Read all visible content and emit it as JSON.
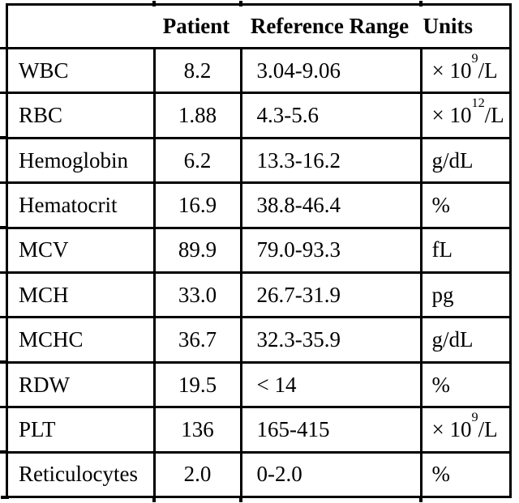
{
  "header": {
    "patient": "Patient",
    "reference_range": "Reference Range",
    "units": "Units"
  },
  "rows": [
    {
      "name": "WBC",
      "patient": "8.2",
      "range": "3.04-9.06",
      "unit": {
        "base": "× 10",
        "sup": "9",
        "tail": "/L"
      }
    },
    {
      "name": "RBC",
      "patient": "1.88",
      "range": "4.3-5.6",
      "unit": {
        "base": "× 10",
        "sup": "12",
        "tail": "/L"
      }
    },
    {
      "name": "Hemoglobin",
      "patient": "6.2",
      "range": "13.3-16.2",
      "unit": {
        "base": "g/dL",
        "sup": "",
        "tail": ""
      }
    },
    {
      "name": "Hematocrit",
      "patient": "16.9",
      "range": "38.8-46.4",
      "unit": {
        "base": "%",
        "sup": "",
        "tail": ""
      }
    },
    {
      "name": "MCV",
      "patient": "89.9",
      "range": "79.0-93.3",
      "unit": {
        "base": "fL",
        "sup": "",
        "tail": ""
      }
    },
    {
      "name": "MCH",
      "patient": "33.0",
      "range": "26.7-31.9",
      "unit": {
        "base": "pg",
        "sup": "",
        "tail": ""
      }
    },
    {
      "name": "MCHC",
      "patient": "36.7",
      "range": "32.3-35.9",
      "unit": {
        "base": "g/dL",
        "sup": "",
        "tail": ""
      }
    },
    {
      "name": "RDW",
      "patient": "19.5",
      "range": "< 14",
      "unit": {
        "base": "%",
        "sup": "",
        "tail": ""
      }
    },
    {
      "name": "PLT",
      "patient": "136",
      "range": "165-415",
      "unit": {
        "base": "× 10",
        "sup": "9",
        "tail": "/L"
      }
    },
    {
      "name": "Reticulocytes",
      "patient": "2.0",
      "range": "0-2.0",
      "unit": {
        "base": "%",
        "sup": "",
        "tail": ""
      }
    }
  ],
  "colors": {
    "border": "#000000",
    "text": "#000000",
    "background": "#ffffff"
  }
}
